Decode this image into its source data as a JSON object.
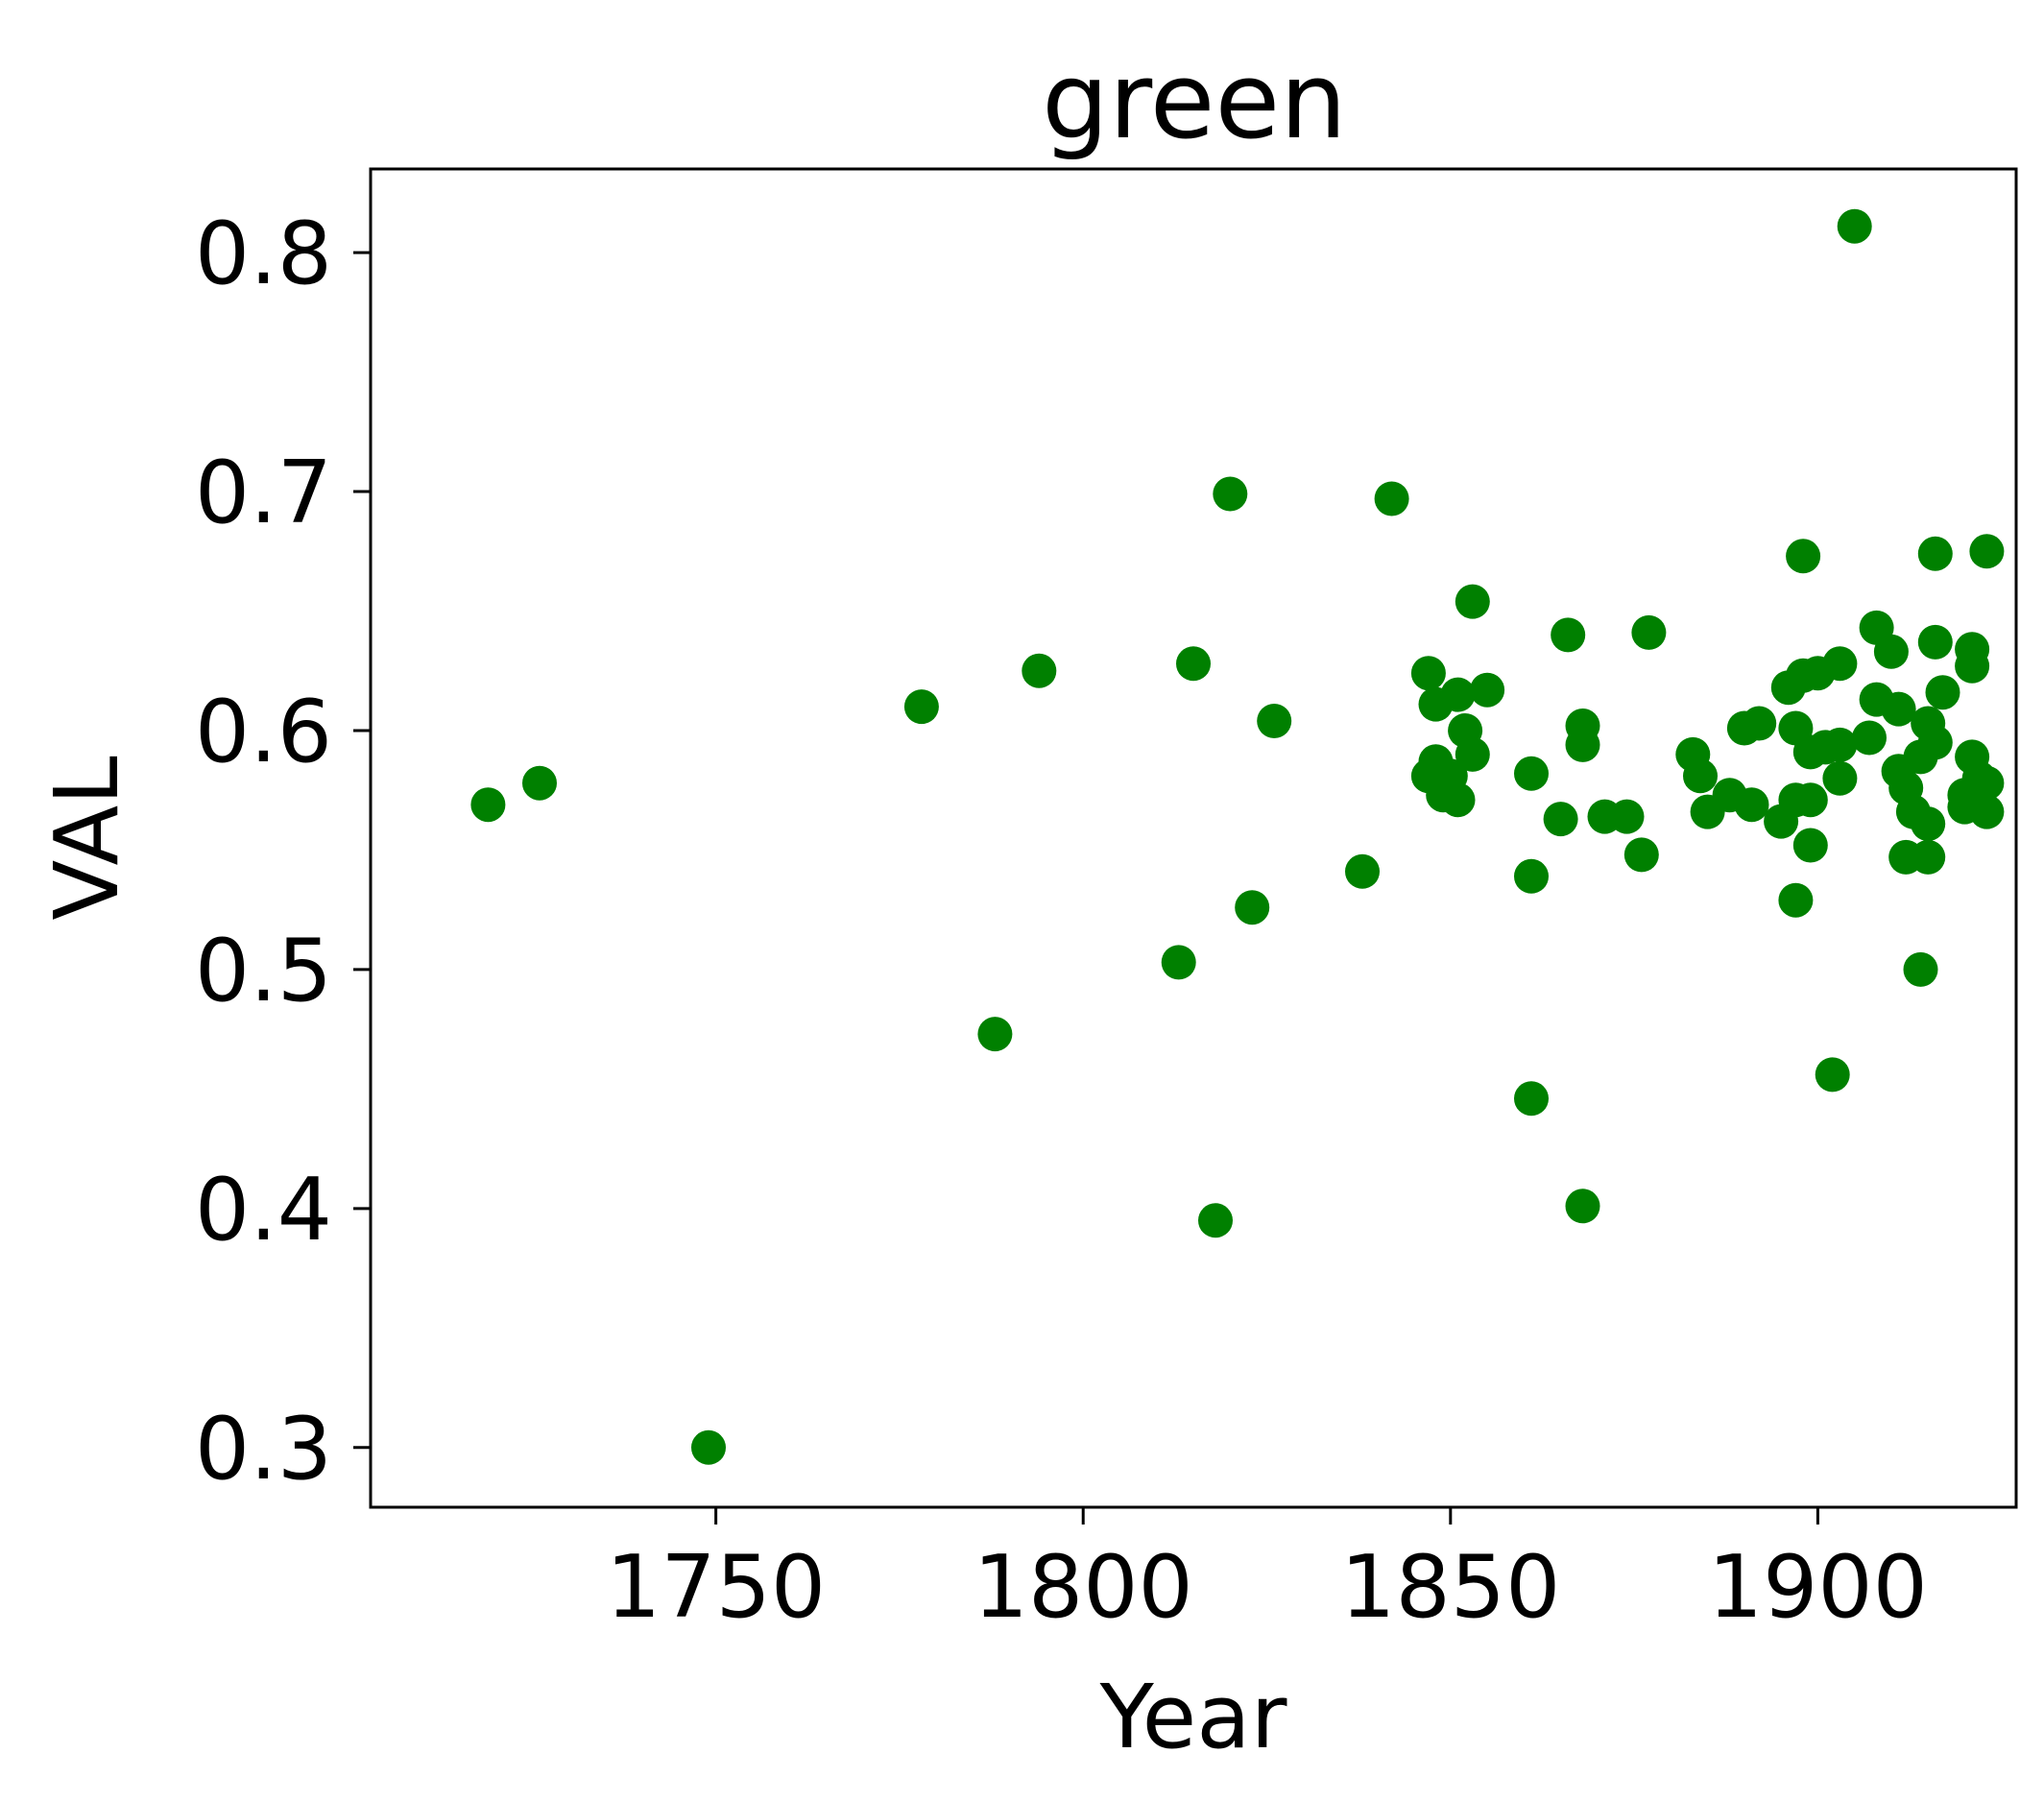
{
  "chart_data": {
    "type": "scatter",
    "title": "green",
    "xlabel": "Year",
    "ylabel": "VAL",
    "xlim": [
      1703,
      1927
    ],
    "ylim": [
      0.275,
      0.835
    ],
    "xticks": [
      1750,
      1800,
      1850,
      1900
    ],
    "yticks": [
      0.3,
      0.4,
      0.5,
      0.6,
      0.7,
      0.8
    ],
    "ytick_labels": [
      "0.3",
      "0.4",
      "0.5",
      "0.6",
      "0.7",
      "0.8"
    ],
    "grid": false,
    "marker_color": "#008000",
    "points": [
      [
        1719,
        0.569
      ],
      [
        1726,
        0.578
      ],
      [
        1749,
        0.3
      ],
      [
        1778,
        0.61
      ],
      [
        1788,
        0.473
      ],
      [
        1794,
        0.625
      ],
      [
        1813,
        0.503
      ],
      [
        1815,
        0.628
      ],
      [
        1818,
        0.395
      ],
      [
        1820,
        0.699
      ],
      [
        1823,
        0.526
      ],
      [
        1826,
        0.604
      ],
      [
        1838,
        0.541
      ],
      [
        1842,
        0.697
      ],
      [
        1847,
        0.581
      ],
      [
        1847,
        0.624
      ],
      [
        1848,
        0.611
      ],
      [
        1848,
        0.587
      ],
      [
        1849,
        0.573
      ],
      [
        1850,
        0.581
      ],
      [
        1851,
        0.615
      ],
      [
        1851,
        0.571
      ],
      [
        1852,
        0.6
      ],
      [
        1853,
        0.59
      ],
      [
        1853,
        0.654
      ],
      [
        1855,
        0.617
      ],
      [
        1861,
        0.582
      ],
      [
        1861,
        0.539
      ],
      [
        1861,
        0.446
      ],
      [
        1865,
        0.563
      ],
      [
        1866,
        0.64
      ],
      [
        1868,
        0.594
      ],
      [
        1868,
        0.602
      ],
      [
        1868,
        0.401
      ],
      [
        1871,
        0.564
      ],
      [
        1874,
        0.564
      ],
      [
        1876,
        0.548
      ],
      [
        1877,
        0.641
      ],
      [
        1883,
        0.59
      ],
      [
        1884,
        0.581
      ],
      [
        1885,
        0.566
      ],
      [
        1888,
        0.573
      ],
      [
        1890,
        0.601
      ],
      [
        1891,
        0.569
      ],
      [
        1892,
        0.603
      ],
      [
        1895,
        0.562
      ],
      [
        1896,
        0.618
      ],
      [
        1897,
        0.601
      ],
      [
        1897,
        0.529
      ],
      [
        1897,
        0.571
      ],
      [
        1898,
        0.673
      ],
      [
        1898,
        0.623
      ],
      [
        1899,
        0.591
      ],
      [
        1899,
        0.571
      ],
      [
        1899,
        0.552
      ],
      [
        1900,
        0.624
      ],
      [
        1901,
        0.593
      ],
      [
        1902,
        0.456
      ],
      [
        1903,
        0.58
      ],
      [
        1903,
        0.594
      ],
      [
        1903,
        0.628
      ],
      [
        1905,
        0.811
      ],
      [
        1907,
        0.597
      ],
      [
        1908,
        0.643
      ],
      [
        1908,
        0.613
      ],
      [
        1910,
        0.633
      ],
      [
        1911,
        0.609
      ],
      [
        1911,
        0.583
      ],
      [
        1912,
        0.576
      ],
      [
        1912,
        0.547
      ],
      [
        1913,
        0.566
      ],
      [
        1914,
        0.5
      ],
      [
        1914,
        0.589
      ],
      [
        1915,
        0.561
      ],
      [
        1915,
        0.603
      ],
      [
        1915,
        0.547
      ],
      [
        1916,
        0.595
      ],
      [
        1916,
        0.674
      ],
      [
        1916,
        0.637
      ],
      [
        1917,
        0.616
      ],
      [
        1920,
        0.573
      ],
      [
        1920,
        0.568
      ],
      [
        1921,
        0.589
      ],
      [
        1921,
        0.634
      ],
      [
        1921,
        0.627
      ],
      [
        1922,
        0.58
      ],
      [
        1923,
        0.566
      ],
      [
        1923,
        0.675
      ],
      [
        1923,
        0.578
      ]
    ]
  }
}
